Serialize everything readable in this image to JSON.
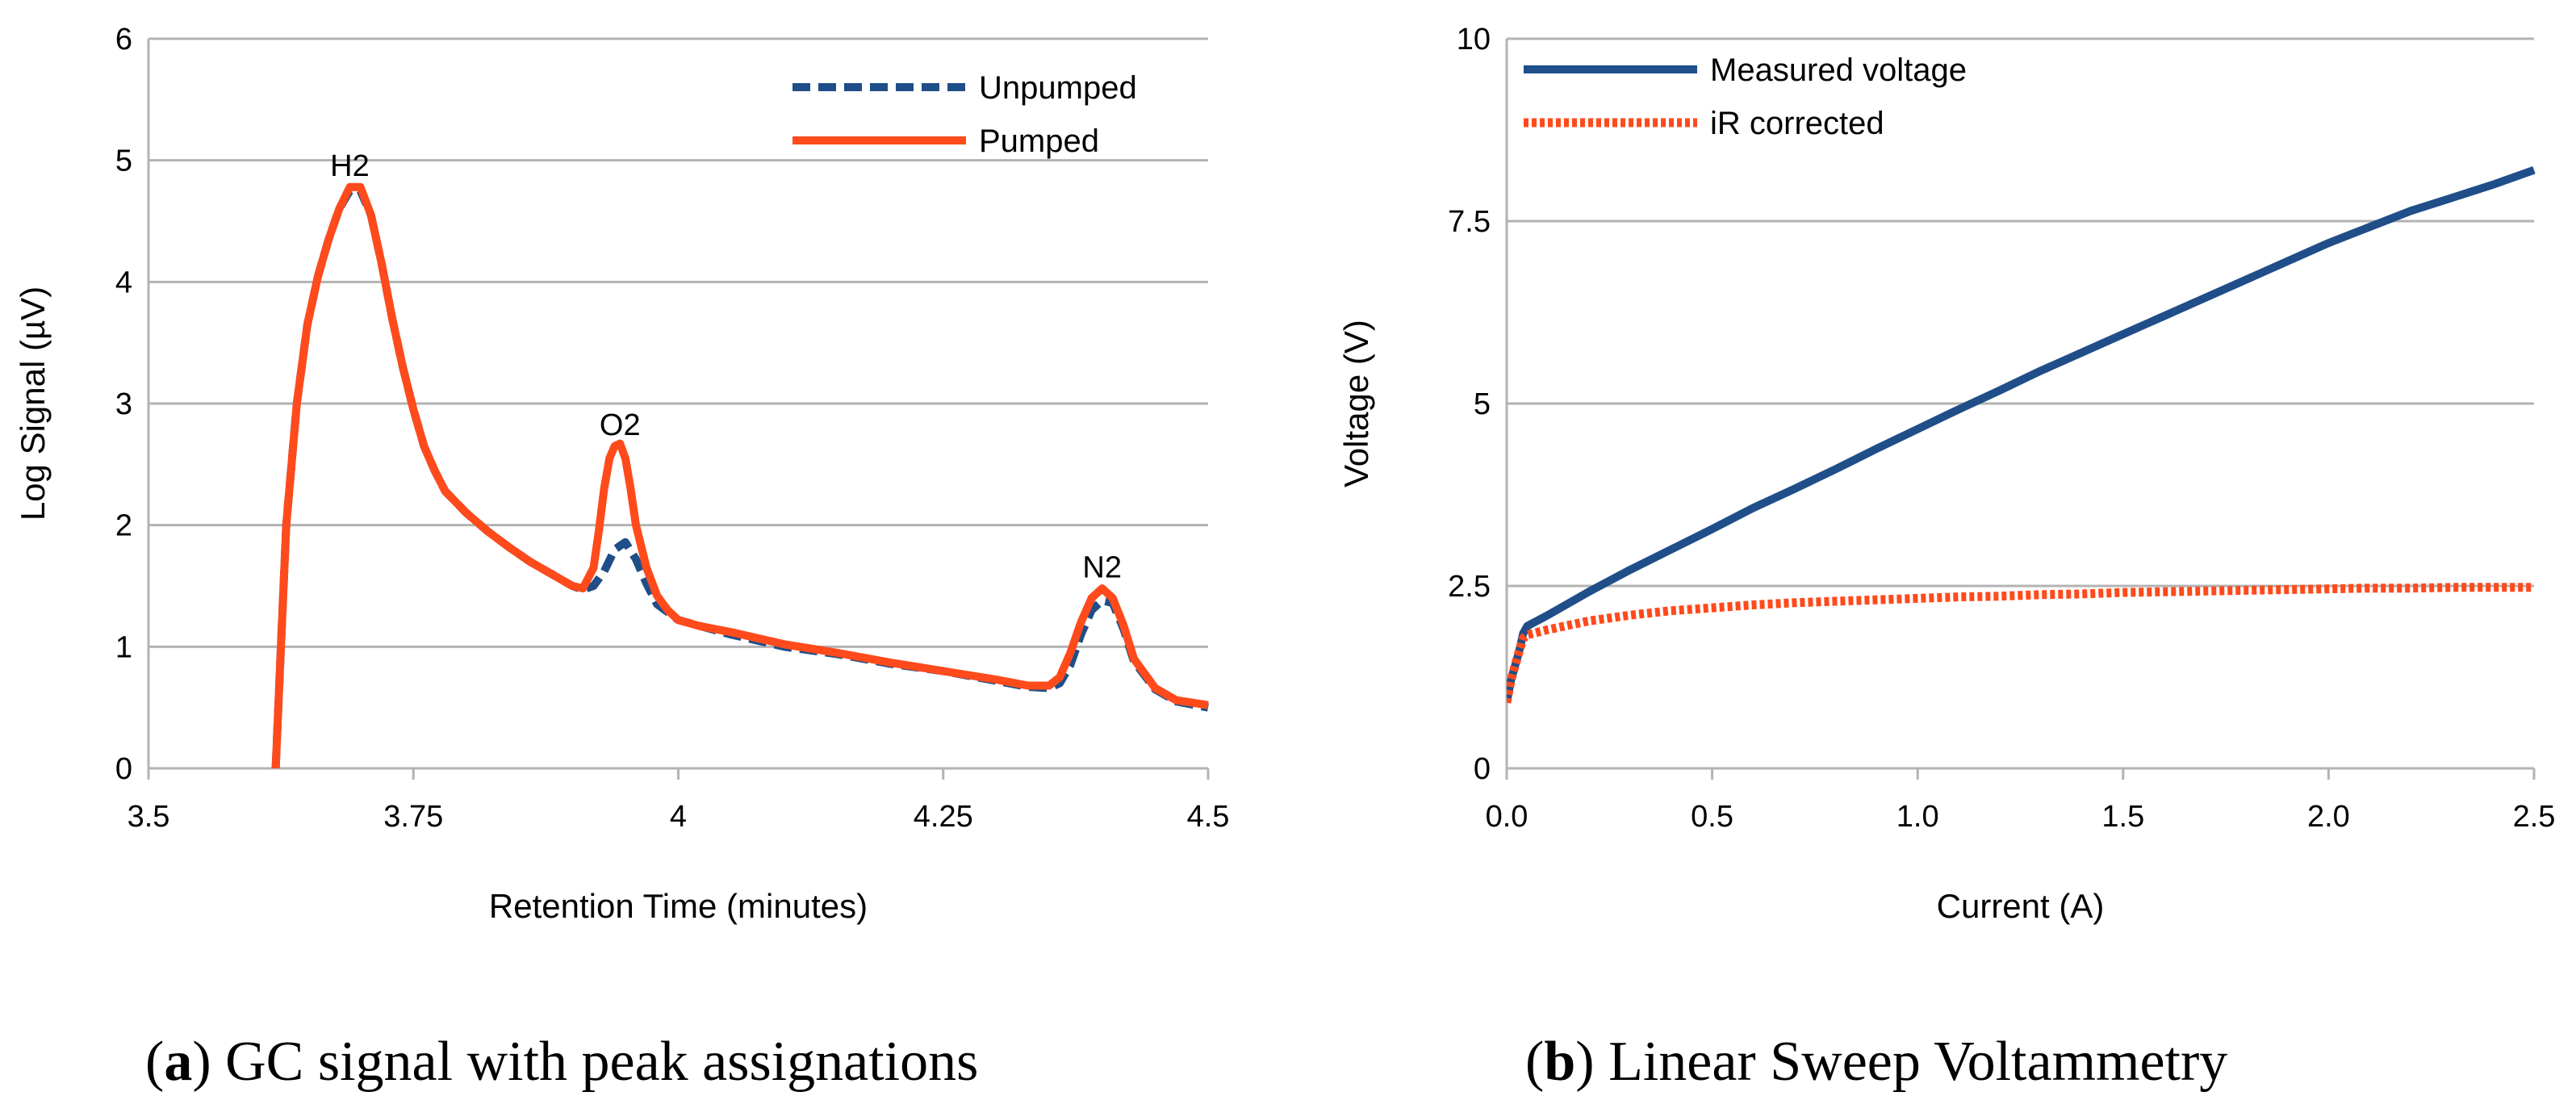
{
  "chart_data": [
    {
      "type": "line",
      "panel_label": "a",
      "caption": "GC signal with peak assignations",
      "xlabel": "Retention Time (minutes)",
      "ylabel": "Log Signal (µV)",
      "xlim": [
        3.5,
        4.5
      ],
      "ylim": [
        0,
        6
      ],
      "xticks": [
        "3.5",
        "3.75",
        "4",
        "4.25",
        "4.5"
      ],
      "yticks": [
        "0",
        "1",
        "2",
        "3",
        "4",
        "5",
        "6"
      ],
      "grid": "horizontal",
      "legend_position": "top-right",
      "annotations": [
        {
          "text": "H2",
          "x": 3.69,
          "y": 4.95
        },
        {
          "text": "O2",
          "x": 3.945,
          "y": 2.82
        },
        {
          "text": "N2",
          "x": 4.4,
          "y": 1.65
        }
      ],
      "series": [
        {
          "name": "Unpumped",
          "color": "#1f4e89",
          "style": "dashed",
          "x": [
            3.62,
            3.625,
            3.63,
            3.64,
            3.65,
            3.66,
            3.67,
            3.68,
            3.69,
            3.7,
            3.71,
            3.72,
            3.73,
            3.74,
            3.75,
            3.76,
            3.77,
            3.78,
            3.8,
            3.82,
            3.84,
            3.86,
            3.88,
            3.9,
            3.91,
            3.92,
            3.93,
            3.94,
            3.95,
            3.96,
            3.97,
            3.98,
            4.0,
            4.05,
            4.1,
            4.15,
            4.2,
            4.25,
            4.3,
            4.33,
            4.35,
            4.36,
            4.37,
            4.38,
            4.39,
            4.4,
            4.41,
            4.42,
            4.43,
            4.45,
            4.47,
            4.5
          ],
          "y": [
            0.0,
            1.0,
            2.0,
            3.0,
            3.65,
            4.05,
            4.35,
            4.6,
            4.75,
            4.75,
            4.55,
            4.15,
            3.7,
            3.3,
            2.95,
            2.65,
            2.45,
            2.28,
            2.1,
            1.95,
            1.82,
            1.7,
            1.6,
            1.5,
            1.47,
            1.5,
            1.62,
            1.8,
            1.86,
            1.72,
            1.52,
            1.35,
            1.22,
            1.1,
            1.0,
            0.94,
            0.86,
            0.8,
            0.72,
            0.67,
            0.66,
            0.7,
            0.85,
            1.1,
            1.3,
            1.38,
            1.36,
            1.15,
            0.88,
            0.65,
            0.55,
            0.5
          ]
        },
        {
          "name": "Pumped",
          "color": "#ff4a1c",
          "style": "solid",
          "x": [
            3.62,
            3.625,
            3.63,
            3.64,
            3.65,
            3.66,
            3.67,
            3.68,
            3.69,
            3.7,
            3.71,
            3.72,
            3.73,
            3.74,
            3.75,
            3.76,
            3.77,
            3.78,
            3.8,
            3.82,
            3.84,
            3.86,
            3.88,
            3.9,
            3.91,
            3.92,
            3.925,
            3.93,
            3.935,
            3.94,
            3.945,
            3.95,
            3.955,
            3.96,
            3.97,
            3.98,
            3.99,
            4.0,
            4.02,
            4.05,
            4.1,
            4.15,
            4.2,
            4.25,
            4.3,
            4.33,
            4.35,
            4.36,
            4.37,
            4.38,
            4.39,
            4.4,
            4.41,
            4.42,
            4.43,
            4.45,
            4.47,
            4.5
          ],
          "y": [
            0.0,
            1.0,
            2.0,
            3.0,
            3.65,
            4.05,
            4.35,
            4.6,
            4.78,
            4.78,
            4.55,
            4.15,
            3.7,
            3.3,
            2.95,
            2.65,
            2.45,
            2.28,
            2.1,
            1.95,
            1.82,
            1.7,
            1.6,
            1.5,
            1.48,
            1.65,
            1.95,
            2.3,
            2.55,
            2.65,
            2.67,
            2.55,
            2.3,
            2.0,
            1.65,
            1.42,
            1.3,
            1.22,
            1.17,
            1.12,
            1.02,
            0.95,
            0.87,
            0.8,
            0.73,
            0.68,
            0.68,
            0.75,
            0.95,
            1.2,
            1.4,
            1.48,
            1.4,
            1.18,
            0.9,
            0.66,
            0.56,
            0.52
          ]
        }
      ]
    },
    {
      "type": "line",
      "panel_label": "b",
      "caption": "Linear Sweep Voltammetry",
      "xlabel": "Current (A)",
      "ylabel": "Voltage (V)",
      "xlim": [
        0,
        2.5
      ],
      "ylim": [
        0,
        10
      ],
      "xticks": [
        "0.0",
        "0.5",
        "1.0",
        "1.5",
        "2.0",
        "2.5"
      ],
      "yticks": [
        "0",
        "2.5",
        "5",
        "7.5",
        "10"
      ],
      "grid": "horizontal",
      "legend_position": "top-left",
      "series": [
        {
          "name": "Measured voltage",
          "color": "#1f4e89",
          "style": "solid",
          "x": [
            0.0,
            0.01,
            0.02,
            0.03,
            0.04,
            0.05,
            0.1,
            0.2,
            0.3,
            0.4,
            0.5,
            0.6,
            0.7,
            0.8,
            0.9,
            1.0,
            1.1,
            1.2,
            1.3,
            1.4,
            1.5,
            1.6,
            1.7,
            1.8,
            1.9,
            2.0,
            2.1,
            2.2,
            2.3,
            2.4,
            2.5
          ],
          "y": [
            0.9,
            1.2,
            1.4,
            1.6,
            1.85,
            1.95,
            2.1,
            2.42,
            2.72,
            3.0,
            3.28,
            3.57,
            3.83,
            4.1,
            4.38,
            4.65,
            4.92,
            5.18,
            5.45,
            5.7,
            5.95,
            6.2,
            6.45,
            6.7,
            6.95,
            7.2,
            7.42,
            7.64,
            7.82,
            8.0,
            8.2
          ]
        },
        {
          "name": "iR corrected",
          "color": "#ff4a1c",
          "style": "dotted",
          "x": [
            0.0,
            0.01,
            0.02,
            0.03,
            0.04,
            0.05,
            0.1,
            0.2,
            0.3,
            0.4,
            0.5,
            0.6,
            0.7,
            0.8,
            0.9,
            1.0,
            1.1,
            1.2,
            1.3,
            1.4,
            1.5,
            1.6,
            1.7,
            1.8,
            1.9,
            2.0,
            2.1,
            2.2,
            2.3,
            2.4,
            2.5
          ],
          "y": [
            0.9,
            1.2,
            1.4,
            1.6,
            1.78,
            1.83,
            1.9,
            2.02,
            2.1,
            2.16,
            2.2,
            2.24,
            2.27,
            2.29,
            2.31,
            2.33,
            2.35,
            2.36,
            2.38,
            2.39,
            2.41,
            2.42,
            2.43,
            2.44,
            2.45,
            2.46,
            2.47,
            2.47,
            2.48,
            2.48,
            2.48
          ]
        }
      ]
    }
  ]
}
